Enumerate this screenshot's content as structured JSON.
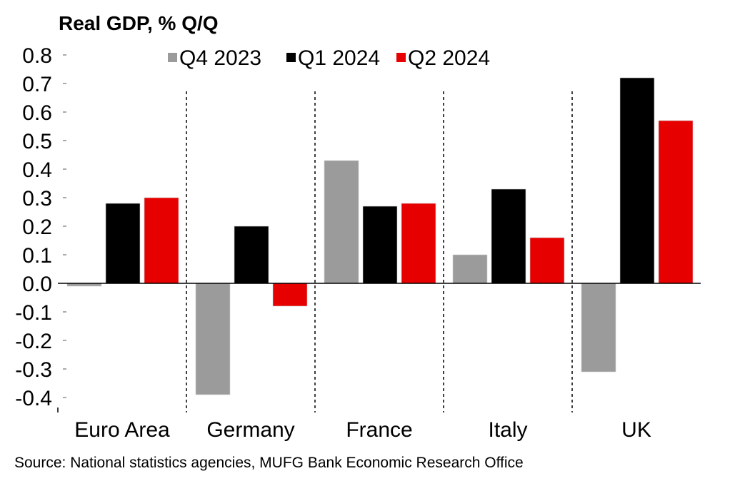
{
  "chart_data": {
    "type": "bar",
    "title": "Real GDP, % Q/Q",
    "xlabel": "",
    "ylabel": "",
    "ylim": [
      -0.4,
      0.8
    ],
    "yticks": [
      0.8,
      0.7,
      0.6,
      0.5,
      0.4,
      0.3,
      0.2,
      0.1,
      0.0,
      -0.1,
      -0.2,
      -0.3,
      -0.4
    ],
    "ytick_labels": [
      "0.8",
      "0.7",
      "0.6",
      "0.5",
      "0.4",
      "0.3",
      "0.2",
      "0.1",
      "0.0",
      "-0.1",
      "-0.2",
      "-0.3",
      "-0.4"
    ],
    "grid": false,
    "legend_position": "top",
    "categories": [
      "Euro Area",
      "Germany",
      "France",
      "Italy",
      "UK"
    ],
    "series": [
      {
        "name": "Q4 2023",
        "color": "#9b9b9b",
        "values": [
          -0.01,
          -0.39,
          0.43,
          0.1,
          -0.31
        ]
      },
      {
        "name": "Q1 2024",
        "color": "#000000",
        "values": [
          0.28,
          0.2,
          0.27,
          0.33,
          0.72
        ]
      },
      {
        "name": "Q2 2024",
        "color": "#e60000",
        "values": [
          0.3,
          -0.08,
          0.28,
          0.16,
          0.57
        ]
      }
    ],
    "group_separators": "dashed",
    "source": "Source: National statistics agencies, MUFG Bank Economic Research Office"
  }
}
